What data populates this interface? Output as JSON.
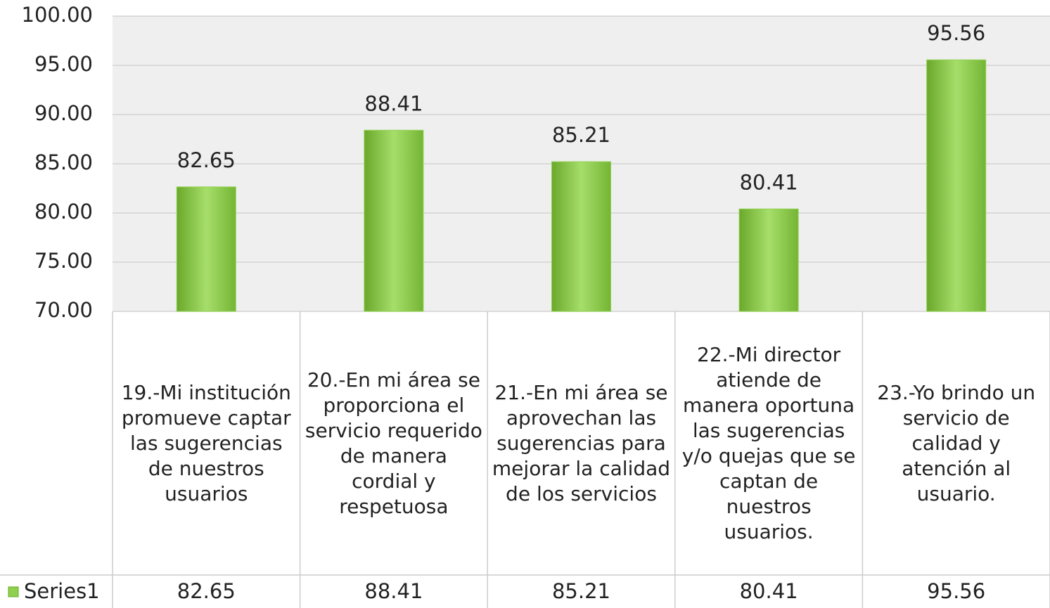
{
  "chart_data": {
    "type": "bar",
    "categories": [
      "19.-Mi institución promueve captar las sugerencias de nuestros usuarios",
      "20.-En mi área se proporciona el servicio requerido de manera cordial y respetuosa",
      "21.-En mi área se aprovechan las sugerencias para mejorar la calidad de los servicios",
      "22.-Mi director atiende de manera oportuna las sugerencias y/o quejas que se captan de nuestros usuarios.",
      "23.-Yo brindo un servicio de calidad y atención al usuario."
    ],
    "series": [
      {
        "name": "Series1",
        "color": "#8fd14f",
        "values": [
          82.65,
          88.41,
          85.21,
          80.41,
          95.56
        ]
      }
    ],
    "ylim": [
      70,
      100
    ],
    "yticks": [
      {
        "value": 70,
        "label": "70.00"
      },
      {
        "value": 75,
        "label": "75.00"
      },
      {
        "value": 80,
        "label": "80.00"
      },
      {
        "value": 85,
        "label": "85.00"
      },
      {
        "value": 90,
        "label": "90.00"
      },
      {
        "value": 95,
        "label": "95.00"
      },
      {
        "value": 100,
        "label": "100.00"
      }
    ],
    "grid": true
  }
}
